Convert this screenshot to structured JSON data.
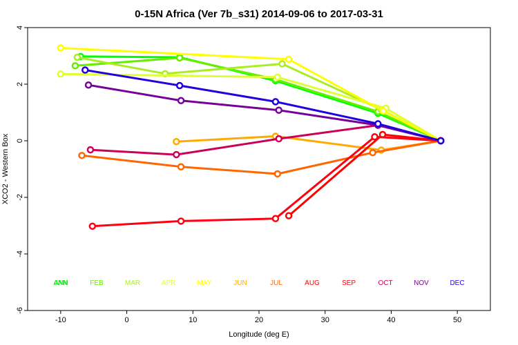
{
  "chart_data": {
    "type": "line",
    "title": "0-15N Africa (Ver 7b_s31)   2014-09-06 to 2017-03-31",
    "xlabel": "Longitude (deg E)",
    "ylabel": "XCO2 - Western Box",
    "xlim": [
      -15,
      55
    ],
    "ylim": [
      -6,
      4
    ],
    "x_ticks": [
      -10,
      0,
      10,
      20,
      30,
      40,
      50
    ],
    "y_ticks": [
      -6,
      -4,
      -2,
      0,
      2,
      4
    ],
    "grid": false,
    "legend": {
      "placement": "bottom"
    },
    "series": [
      {
        "name": "JAN",
        "color": "#00ff00",
        "points": [
          [
            -7,
            2.98
          ],
          [
            8,
            2.95
          ],
          [
            22.5,
            2.12
          ],
          [
            38,
            0.97
          ],
          [
            47.5,
            0.0
          ]
        ]
      },
      {
        "name": "FEB",
        "color": "#66ee00",
        "points": [
          [
            -7.8,
            2.65
          ],
          [
            8,
            2.93
          ],
          [
            22.5,
            2.17
          ],
          [
            38,
            1.03
          ],
          [
            47.5,
            0.0
          ]
        ]
      },
      {
        "name": "MAR",
        "color": "#aaee22",
        "points": [
          [
            -7.5,
            2.95
          ],
          [
            5.8,
            2.37
          ],
          [
            23.5,
            2.72
          ],
          [
            38.5,
            1.1
          ],
          [
            47.5,
            0.0
          ]
        ]
      },
      {
        "name": "APR",
        "color": "#ddff33",
        "points": [
          [
            -10,
            2.36
          ],
          [
            22.8,
            2.25
          ],
          [
            39.2,
            1.15
          ],
          [
            47.5,
            0.0
          ]
        ]
      },
      {
        "name": "MAY",
        "color": "#ffff00",
        "points": [
          [
            -10,
            3.28
          ],
          [
            24.5,
            2.88
          ],
          [
            38.8,
            1.05
          ],
          [
            47.5,
            0.0
          ]
        ]
      },
      {
        "name": "JUN",
        "color": "#ffaa00",
        "points": [
          [
            7.5,
            -0.03
          ],
          [
            22.5,
            0.16
          ],
          [
            38.5,
            -0.33
          ],
          [
            47.5,
            0.0
          ]
        ]
      },
      {
        "name": "JUL",
        "color": "#ff6600",
        "points": [
          [
            -6.8,
            -0.52
          ],
          [
            8.2,
            -0.92
          ],
          [
            22.8,
            -1.17
          ],
          [
            37.2,
            -0.42
          ],
          [
            47.5,
            0.0
          ]
        ]
      },
      {
        "name": "AUG",
        "color": "#ff0000",
        "points": [
          [
            24.5,
            -2.65
          ],
          [
            38.7,
            0.22
          ],
          [
            47.5,
            0.0
          ]
        ]
      },
      {
        "name": "SEP",
        "color": "#ff0011",
        "points": [
          [
            -5.2,
            -3.02
          ],
          [
            8.2,
            -2.84
          ],
          [
            22.5,
            -2.75
          ],
          [
            37.5,
            0.14
          ],
          [
            47.5,
            0.0
          ]
        ]
      },
      {
        "name": "OCT",
        "color": "#cc0055",
        "points": [
          [
            -5.5,
            -0.32
          ],
          [
            7.5,
            -0.49
          ],
          [
            23,
            0.07
          ],
          [
            38,
            0.55
          ],
          [
            47.5,
            0.0
          ]
        ]
      },
      {
        "name": "NOV",
        "color": "#770099",
        "points": [
          [
            -5.8,
            1.97
          ],
          [
            8.2,
            1.42
          ],
          [
            23,
            1.08
          ],
          [
            38,
            0.55
          ],
          [
            47.5,
            0.0
          ]
        ]
      },
      {
        "name": "DEC",
        "color": "#2200dd",
        "points": [
          [
            -6.3,
            2.5
          ],
          [
            8,
            1.95
          ],
          [
            22.5,
            1.38
          ],
          [
            38,
            0.6
          ],
          [
            47.5,
            0.0
          ]
        ]
      }
    ],
    "legend_entries": [
      {
        "label": "ANN",
        "color": "#22bb22"
      },
      {
        "label": "JAN",
        "color": "#00ff00"
      },
      {
        "label": "FEB",
        "color": "#66ee00"
      },
      {
        "label": "MAR",
        "color": "#aaee22"
      },
      {
        "label": "APR",
        "color": "#ddff33"
      },
      {
        "label": "MAY",
        "color": "#ffff00"
      },
      {
        "label": "JUN",
        "color": "#ffaa00"
      },
      {
        "label": "JUL",
        "color": "#ff6600"
      },
      {
        "label": "AUG",
        "color": "#ff0000"
      },
      {
        "label": "SEP",
        "color": "#ff0011"
      },
      {
        "label": "OCT",
        "color": "#cc0055"
      },
      {
        "label": "NOV",
        "color": "#770099"
      },
      {
        "label": "DEC",
        "color": "#2200dd"
      }
    ]
  }
}
